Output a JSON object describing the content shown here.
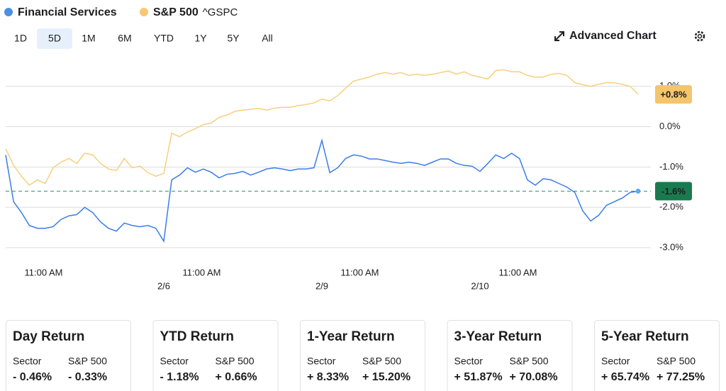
{
  "legend": {
    "items": [
      {
        "name": "Financial Services",
        "color": "#4a90e2"
      },
      {
        "name": "S&P 500",
        "color": "#f7c873",
        "symbol": "^GSPC"
      }
    ]
  },
  "ranges": {
    "items": [
      "1D",
      "5D",
      "1M",
      "6M",
      "YTD",
      "1Y",
      "5Y",
      "All"
    ],
    "selected": 1
  },
  "advanced_chart": "Advanced Chart",
  "chart_data": {
    "type": "line",
    "xlim": [
      0,
      80
    ],
    "xticks": [
      {
        "value": 4.8,
        "label": "11:00 AM"
      },
      {
        "value": 24.8,
        "label": "11:00 AM"
      },
      {
        "value": 44.8,
        "label": "11:00 AM"
      },
      {
        "value": 64.8,
        "label": "11:00 AM"
      }
    ],
    "date_ticks": [
      {
        "value": 20,
        "label": "2/6"
      },
      {
        "value": 40,
        "label": "2/9"
      },
      {
        "value": 60,
        "label": "2/10"
      }
    ],
    "ylim": [
      3.14,
      -3.0
    ],
    "yticks": [
      {
        "value": 1,
        "label": "1.0%"
      },
      {
        "value": 0,
        "label": "0.0%"
      },
      {
        "value": -1,
        "label": "-1.0%"
      },
      {
        "value": -2,
        "label": "-2.0%"
      },
      {
        "value": -3,
        "label": "-3.0%"
      }
    ],
    "grid": true,
    "series": [
      {
        "name": "S&P 500",
        "color": "#f7cf7f",
        "label_color": "#f5c56b",
        "label_text_color": "#222",
        "last_label": "+0.8%",
        "values": [
          -0.55,
          -0.96,
          -1.23,
          -1.45,
          -1.32,
          -1.41,
          -1.02,
          -0.88,
          -0.79,
          -0.91,
          -0.66,
          -0.7,
          -0.91,
          -1.05,
          -1.09,
          -0.79,
          -1.02,
          -0.98,
          -1.14,
          -1.23,
          -1.16,
          -0.16,
          -0.25,
          -0.13,
          -0.05,
          0.05,
          0.09,
          0.23,
          0.29,
          0.38,
          0.41,
          0.43,
          0.45,
          0.41,
          0.46,
          0.48,
          0.48,
          0.52,
          0.55,
          0.59,
          0.68,
          0.64,
          0.77,
          0.95,
          1.13,
          1.18,
          1.23,
          1.3,
          1.34,
          1.3,
          1.34,
          1.27,
          1.3,
          1.27,
          1.3,
          1.34,
          1.38,
          1.3,
          1.36,
          1.27,
          1.23,
          1.18,
          1.39,
          1.41,
          1.36,
          1.36,
          1.27,
          1.23,
          1.23,
          1.3,
          1.32,
          1.27,
          1.09,
          1.04,
          1.0,
          1.05,
          1.09,
          1.09,
          1.05,
          1.0,
          0.8
        ]
      },
      {
        "name": "Financial Services",
        "color": "#3b7de8",
        "label_color": "#1a7a4f",
        "label_text_color": "#fff",
        "last_label": "-1.6%",
        "reference": true,
        "values": [
          -0.7,
          -1.86,
          -2.13,
          -2.45,
          -2.52,
          -2.52,
          -2.48,
          -2.3,
          -2.21,
          -2.18,
          -2.0,
          -2.13,
          -2.36,
          -2.52,
          -2.59,
          -2.39,
          -2.45,
          -2.48,
          -2.45,
          -2.52,
          -2.84,
          -1.32,
          -1.2,
          -1.02,
          -1.13,
          -1.05,
          -1.13,
          -1.27,
          -1.18,
          -1.16,
          -1.11,
          -1.2,
          -1.13,
          -1.05,
          -1.02,
          -1.05,
          -1.09,
          -1.05,
          -1.05,
          -1.02,
          -0.34,
          -1.14,
          -1.02,
          -0.79,
          -0.7,
          -0.73,
          -0.8,
          -0.8,
          -0.84,
          -0.88,
          -0.91,
          -0.88,
          -0.91,
          -0.96,
          -0.88,
          -0.8,
          -0.8,
          -0.91,
          -0.96,
          -0.98,
          -1.11,
          -0.91,
          -0.7,
          -0.79,
          -0.66,
          -0.79,
          -1.32,
          -1.45,
          -1.29,
          -1.32,
          -1.41,
          -1.5,
          -1.63,
          -2.09,
          -2.34,
          -2.2,
          -1.95,
          -1.86,
          -1.77,
          -1.63,
          -1.6
        ]
      }
    ]
  },
  "cards": [
    {
      "title": "Day Return",
      "sector_label": "Sector",
      "sp_label": "S&P 500",
      "sector": "- 0.46%",
      "sp": "- 0.33%"
    },
    {
      "title": "YTD Return",
      "sector_label": "Sector",
      "sp_label": "S&P 500",
      "sector": "- 1.18%",
      "sp": "+ 0.66%"
    },
    {
      "title": "1-Year Return",
      "sector_label": "Sector",
      "sp_label": "S&P 500",
      "sector": "+ 8.33%",
      "sp": "+ 15.20%"
    },
    {
      "title": "3-Year Return",
      "sector_label": "Sector",
      "sp_label": "S&P 500",
      "sector": "+ 51.87%",
      "sp": "+ 70.08%"
    },
    {
      "title": "5-Year Return",
      "sector_label": "Sector",
      "sp_label": "S&P 500",
      "sector": "+ 65.74%",
      "sp": "+ 77.25%"
    }
  ]
}
